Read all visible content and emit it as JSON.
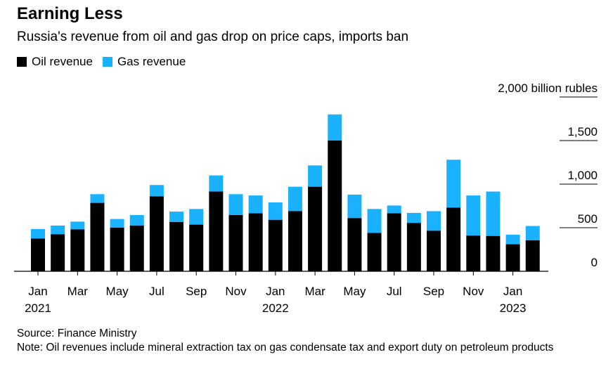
{
  "title": "Earning Less",
  "subtitle": "Russia's revenue from oil and gas drop on price caps, imports ban",
  "legend": [
    {
      "label": "Oil revenue",
      "color": "#000000"
    },
    {
      "label": "Gas revenue",
      "color": "#1ab2ff"
    }
  ],
  "source": "Source: Finance Ministry",
  "note": "Note: Oil revenues include mineral extraction tax on gas condensate tax and export duty on petroleum products",
  "chart_data": {
    "type": "bar",
    "stacked": true,
    "title": "Earning Less",
    "subtitle": "Russia's revenue from oil and gas drop on price caps, imports ban",
    "y_unit_label": "2,000 billion rubles",
    "ylim": [
      0,
      2000
    ],
    "yticks": [
      0,
      500,
      1000,
      1500,
      2000
    ],
    "ytick_labels": [
      "0",
      "500",
      "1,000",
      "1,500",
      "2,000 billion rubles"
    ],
    "legend_position": "top-left",
    "categories": [
      "Jan 2021",
      "Feb 2021",
      "Mar 2021",
      "Apr 2021",
      "May 2021",
      "Jun 2021",
      "Jul 2021",
      "Aug 2021",
      "Sep 2021",
      "Oct 2021",
      "Nov 2021",
      "Dec 2021",
      "Jan 2022",
      "Feb 2022",
      "Mar 2022",
      "Apr 2022",
      "May 2022",
      "Jun 2022",
      "Jul 2022",
      "Aug 2022",
      "Sep 2022",
      "Oct 2022",
      "Nov 2022",
      "Dec 2022",
      "Jan 2023",
      "Feb 2023"
    ],
    "x_tick_labels": [
      {
        "index": 0,
        "month": "Jan",
        "year": "2021"
      },
      {
        "index": 2,
        "month": "Mar",
        "year": ""
      },
      {
        "index": 4,
        "month": "May",
        "year": ""
      },
      {
        "index": 6,
        "month": "Jul",
        "year": ""
      },
      {
        "index": 8,
        "month": "Sep",
        "year": ""
      },
      {
        "index": 10,
        "month": "Nov",
        "year": ""
      },
      {
        "index": 12,
        "month": "Jan",
        "year": "2022"
      },
      {
        "index": 14,
        "month": "Mar",
        "year": ""
      },
      {
        "index": 16,
        "month": "May",
        "year": ""
      },
      {
        "index": 18,
        "month": "Jul",
        "year": ""
      },
      {
        "index": 20,
        "month": "Sep",
        "year": ""
      },
      {
        "index": 22,
        "month": "Nov",
        "year": ""
      },
      {
        "index": 24,
        "month": "Jan",
        "year": "2023"
      }
    ],
    "series": [
      {
        "name": "Oil revenue",
        "color": "#000000",
        "values": [
          375,
          425,
          480,
          785,
          500,
          525,
          860,
          565,
          535,
          915,
          645,
          665,
          590,
          690,
          970,
          1500,
          610,
          440,
          665,
          555,
          465,
          730,
          410,
          405,
          310,
          355
        ]
      },
      {
        "name": "Gas revenue",
        "color": "#1ab2ff",
        "values": [
          110,
          100,
          90,
          100,
          100,
          120,
          130,
          120,
          180,
          185,
          240,
          205,
          200,
          280,
          245,
          300,
          270,
          275,
          90,
          115,
          225,
          550,
          460,
          510,
          110,
          165
        ]
      }
    ]
  }
}
